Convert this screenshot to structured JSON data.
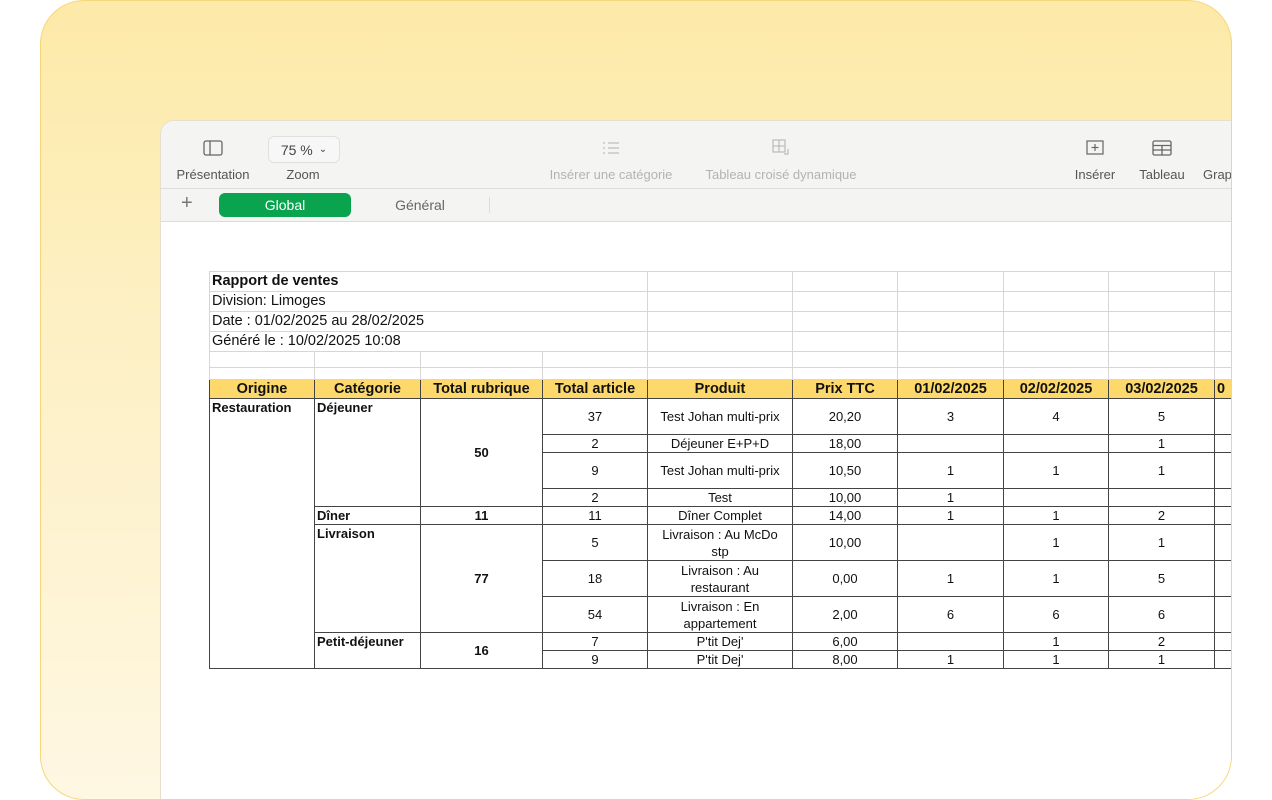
{
  "toolbar": {
    "presentation_label": "Présentation",
    "zoom_value": "75 %",
    "zoom_label": "Zoom",
    "insert_category_label": "Insérer une catégorie",
    "pivot_table_label": "Tableau croisé dynamique",
    "insert_label": "Insérer",
    "table_label": "Tableau",
    "chart_label": "Grap"
  },
  "sheets": {
    "add_icon": "plus-icon",
    "tabs": [
      {
        "label": "Global",
        "active": true
      },
      {
        "label": "Général",
        "active": false
      }
    ],
    "accent": "#0aa34e"
  },
  "report": {
    "title": "Rapport de ventes",
    "division": "Division: Limoges",
    "date_range": "Date : 01/02/2025 au 28/02/2025",
    "generated": "Généré le : 10/02/2025 10:08",
    "header_color": "#fdd96b",
    "headers": [
      "Origine",
      "Catégorie",
      "Total rubrique",
      "Total article",
      "Produit",
      "Prix TTC",
      "01/02/2025",
      "02/02/2025",
      "03/02/2025",
      "0"
    ],
    "origin": "Restauration",
    "groups": [
      {
        "category": "Déjeuner",
        "total": "50",
        "rows": [
          {
            "total_article": "37",
            "product": "Test Johan multi-prix",
            "price": "20,20",
            "d1": "3",
            "d2": "4",
            "d3": "5"
          },
          {
            "total_article": "2",
            "product": "Déjeuner E+P+D",
            "price": "18,00",
            "d1": "",
            "d2": "",
            "d3": "1"
          },
          {
            "total_article": "9",
            "product": "Test Johan multi-prix",
            "price": "10,50",
            "d1": "1",
            "d2": "1",
            "d3": "1"
          },
          {
            "total_article": "2",
            "product": "Test",
            "price": "10,00",
            "d1": "1",
            "d2": "",
            "d3": ""
          }
        ]
      },
      {
        "category": "Dîner",
        "total": "11",
        "rows": [
          {
            "total_article": "11",
            "product": "Dîner Complet",
            "price": "14,00",
            "d1": "1",
            "d2": "1",
            "d3": "2"
          }
        ]
      },
      {
        "category": "Livraison",
        "total": "77",
        "rows": [
          {
            "total_article": "5",
            "product": "Livraison : Au McDo stp",
            "price": "10,00",
            "d1": "",
            "d2": "1",
            "d3": "1"
          },
          {
            "total_article": "18",
            "product": "Livraison : Au restaurant",
            "price": "0,00",
            "d1": "1",
            "d2": "1",
            "d3": "5"
          },
          {
            "total_article": "54",
            "product": "Livraison : En appartement",
            "price": "2,00",
            "d1": "6",
            "d2": "6",
            "d3": "6"
          }
        ]
      },
      {
        "category": "Petit-déjeuner",
        "total": "16",
        "rows": [
          {
            "total_article": "7",
            "product": "P'tit Dej'",
            "price": "6,00",
            "d1": "",
            "d2": "1",
            "d3": "2"
          },
          {
            "total_article": "9",
            "product": "P'tit Dej'",
            "price": "8,00",
            "d1": "1",
            "d2": "1",
            "d3": "1"
          }
        ]
      }
    ]
  }
}
